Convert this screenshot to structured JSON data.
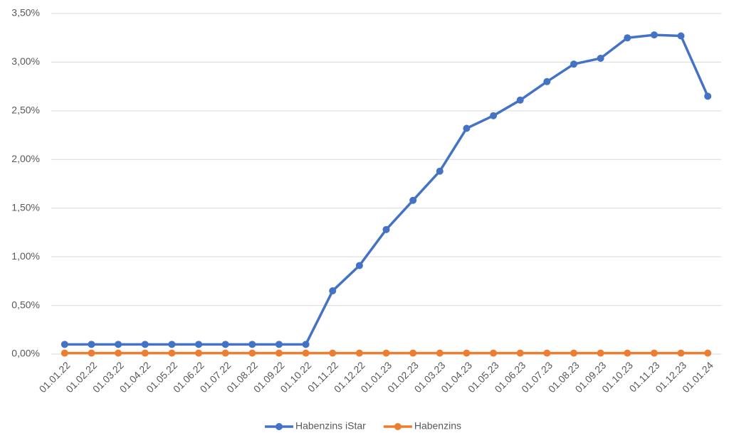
{
  "chart_data": {
    "type": "line",
    "categories": [
      "01.01.22",
      "01.02.22",
      "01.03.22",
      "01.04.22",
      "01.05.22",
      "01.06.22",
      "01.07.22",
      "01.08.22",
      "01.09.22",
      "01.10.22",
      "01.11.22",
      "01.12.22",
      "01.01.23",
      "01.02.23",
      "01.03.23",
      "01.04.23",
      "01.05.23",
      "01.06.23",
      "01.07.23",
      "01.08.23",
      "01.09.23",
      "01.10.23",
      "01.11.23",
      "01.12.23",
      "01.01.24"
    ],
    "series": [
      {
        "name": "Habenzins iStar",
        "color": "#4472c4",
        "values": [
          0.1,
          0.1,
          0.1,
          0.1,
          0.1,
          0.1,
          0.1,
          0.1,
          0.1,
          0.1,
          0.65,
          0.91,
          1.28,
          1.58,
          1.88,
          2.32,
          2.45,
          2.61,
          2.8,
          2.98,
          3.04,
          3.25,
          3.28,
          3.27,
          2.65
        ]
      },
      {
        "name": "Habenzins",
        "color": "#ed7d31",
        "values": [
          0.01,
          0.01,
          0.01,
          0.01,
          0.01,
          0.01,
          0.01,
          0.01,
          0.01,
          0.01,
          0.01,
          0.01,
          0.01,
          0.01,
          0.01,
          0.01,
          0.01,
          0.01,
          0.01,
          0.01,
          0.01,
          0.01,
          0.01,
          0.01,
          0.01
        ]
      }
    ],
    "ylim": [
      0,
      3.5
    ],
    "yticks": [
      {
        "value": 0,
        "label": "0,00%"
      },
      {
        "value": 0.5,
        "label": "0,50%"
      },
      {
        "value": 1,
        "label": "1,00%"
      },
      {
        "value": 1.5,
        "label": "1,50%"
      },
      {
        "value": 2,
        "label": "2,00%"
      },
      {
        "value": 2.5,
        "label": "2,50%"
      },
      {
        "value": 3,
        "label": "3,00%"
      },
      {
        "value": 3.5,
        "label": "3,50%"
      }
    ],
    "grid": true,
    "legend": "bottom"
  }
}
